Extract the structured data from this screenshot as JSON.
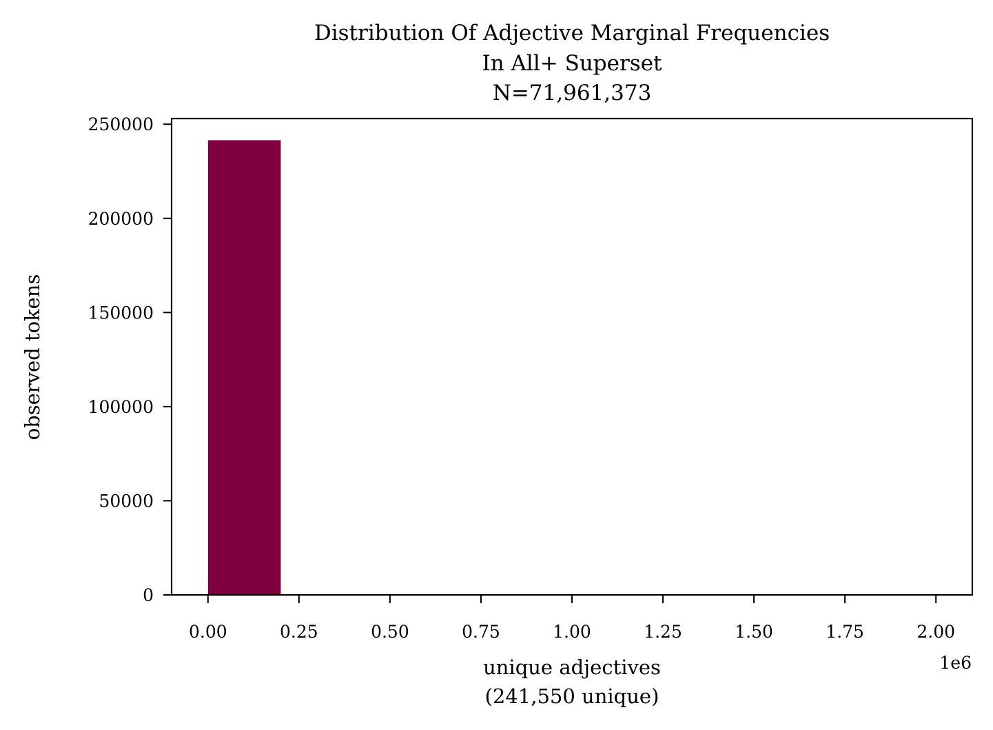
{
  "chart_data": {
    "type": "bar",
    "title_lines": [
      "Distribution Of Adjective Marginal Frequencies",
      "In All+ Superset",
      "N=71,961,373"
    ],
    "xlabel_lines": [
      "unique adjectives",
      "(241,550 unique)"
    ],
    "ylabel": "observed tokens",
    "x_offset_label": "1e6",
    "xlim": [
      -100000,
      2100000
    ],
    "ylim": [
      0,
      253000
    ],
    "x_ticks": [
      0,
      250000,
      500000,
      750000,
      1000000,
      1250000,
      1500000,
      1750000,
      2000000
    ],
    "x_tick_labels": [
      "0.00",
      "0.25",
      "0.50",
      "0.75",
      "1.00",
      "1.25",
      "1.50",
      "1.75",
      "2.00"
    ],
    "y_ticks": [
      0,
      50000,
      100000,
      150000,
      200000,
      250000
    ],
    "y_tick_labels": [
      "0",
      "50000",
      "100000",
      "150000",
      "200000",
      "250000"
    ],
    "bins": [
      {
        "x0": 0,
        "x1": 200000,
        "value": 241500
      },
      {
        "x0": 200000,
        "x1": 400000,
        "value": 40
      },
      {
        "x0": 400000,
        "x1": 600000,
        "value": 5
      },
      {
        "x0": 600000,
        "x1": 800000,
        "value": 2
      },
      {
        "x0": 800000,
        "x1": 1000000,
        "value": 1
      },
      {
        "x0": 1000000,
        "x1": 1200000,
        "value": 1
      },
      {
        "x0": 1200000,
        "x1": 1400000,
        "value": 0
      },
      {
        "x0": 1400000,
        "x1": 1600000,
        "value": 0
      },
      {
        "x0": 1600000,
        "x1": 1800000,
        "value": 0
      },
      {
        "x0": 1800000,
        "x1": 2000000,
        "value": 1
      }
    ],
    "bar_color": "#7f003f",
    "grid": false,
    "legend": "none"
  }
}
